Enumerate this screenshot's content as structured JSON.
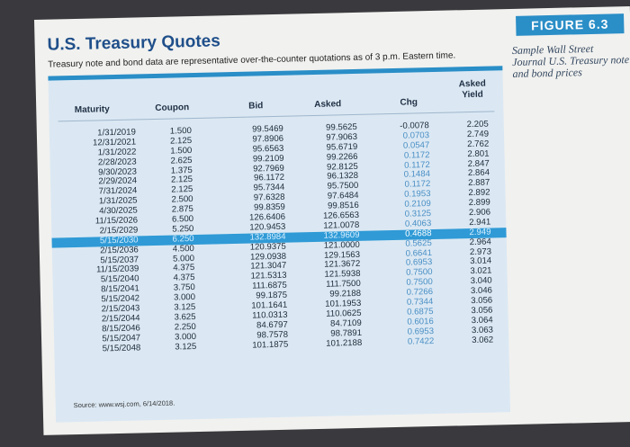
{
  "title": "U.S. Treasury Quotes",
  "subtitle": "Treasury note and bond data are representative over-the-counter quotations as of 3 p.m. Eastern time.",
  "figure_badge": "FIGURE 6.3",
  "caption": "Sample Wall Street Journal U.S. Treasury note and bond prices",
  "table": {
    "headers": {
      "maturity": "Maturity",
      "coupon": "Coupon",
      "bid": "Bid",
      "asked": "Asked",
      "chg": "Chg",
      "asked_yield_1": "Asked",
      "asked_yield_2": "Yield"
    },
    "rows": [
      {
        "maturity": "1/31/2019",
        "coupon": "1.500",
        "bid": "99.5469",
        "asked": "99.5625",
        "chg": "-0.0078",
        "yield": "2.205"
      },
      {
        "maturity": "12/31/2021",
        "coupon": "2.125",
        "bid": "97.8906",
        "asked": "97.9063",
        "chg": "0.0703",
        "yield": "2.749"
      },
      {
        "maturity": "1/31/2022",
        "coupon": "1.500",
        "bid": "95.6563",
        "asked": "95.6719",
        "chg": "0.0547",
        "yield": "2.762"
      },
      {
        "maturity": "2/28/2023",
        "coupon": "2.625",
        "bid": "99.2109",
        "asked": "99.2266",
        "chg": "0.1172",
        "yield": "2.801"
      },
      {
        "maturity": "9/30/2023",
        "coupon": "1.375",
        "bid": "92.7969",
        "asked": "92.8125",
        "chg": "0.1172",
        "yield": "2.847"
      },
      {
        "maturity": "2/29/2024",
        "coupon": "2.125",
        "bid": "96.1172",
        "asked": "96.1328",
        "chg": "0.1484",
        "yield": "2.864"
      },
      {
        "maturity": "7/31/2024",
        "coupon": "2.125",
        "bid": "95.7344",
        "asked": "95.7500",
        "chg": "0.1172",
        "yield": "2.887"
      },
      {
        "maturity": "1/31/2025",
        "coupon": "2.500",
        "bid": "97.6328",
        "asked": "97.6484",
        "chg": "0.1953",
        "yield": "2.892"
      },
      {
        "maturity": "4/30/2025",
        "coupon": "2.875",
        "bid": "99.8359",
        "asked": "99.8516",
        "chg": "0.2109",
        "yield": "2.899"
      },
      {
        "maturity": "11/15/2026",
        "coupon": "6.500",
        "bid": "126.6406",
        "asked": "126.6563",
        "chg": "0.3125",
        "yield": "2.906"
      },
      {
        "maturity": "2/15/2029",
        "coupon": "5.250",
        "bid": "120.9453",
        "asked": "121.0078",
        "chg": "0.4063",
        "yield": "2.941"
      },
      {
        "maturity": "5/15/2030",
        "coupon": "6.250",
        "bid": "132.8984",
        "asked": "132.9609",
        "chg": "0.4688",
        "yield": "2.949",
        "highlight": true
      },
      {
        "maturity": "2/15/2036",
        "coupon": "4.500",
        "bid": "120.9375",
        "asked": "121.0000",
        "chg": "0.5625",
        "yield": "2.964"
      },
      {
        "maturity": "5/15/2037",
        "coupon": "5.000",
        "bid": "129.0938",
        "asked": "129.1563",
        "chg": "0.6641",
        "yield": "2.973"
      },
      {
        "maturity": "11/15/2039",
        "coupon": "4.375",
        "bid": "121.3047",
        "asked": "121.3672",
        "chg": "0.6953",
        "yield": "3.014"
      },
      {
        "maturity": "5/15/2040",
        "coupon": "4.375",
        "bid": "121.5313",
        "asked": "121.5938",
        "chg": "0.7500",
        "yield": "3.021"
      },
      {
        "maturity": "8/15/2041",
        "coupon": "3.750",
        "bid": "111.6875",
        "asked": "111.7500",
        "chg": "0.7500",
        "yield": "3.040"
      },
      {
        "maturity": "5/15/2042",
        "coupon": "3.000",
        "bid": "99.1875",
        "asked": "99.2188",
        "chg": "0.7266",
        "yield": "3.046"
      },
      {
        "maturity": "2/15/2043",
        "coupon": "3.125",
        "bid": "101.1641",
        "asked": "101.1953",
        "chg": "0.7344",
        "yield": "3.056"
      },
      {
        "maturity": "2/15/2044",
        "coupon": "3.625",
        "bid": "110.0313",
        "asked": "110.0625",
        "chg": "0.6875",
        "yield": "3.056"
      },
      {
        "maturity": "8/15/2046",
        "coupon": "2.250",
        "bid": "84.6797",
        "asked": "84.7109",
        "chg": "0.6016",
        "yield": "3.064"
      },
      {
        "maturity": "5/15/2047",
        "coupon": "3.000",
        "bid": "98.7578",
        "asked": "98.7891",
        "chg": "0.6953",
        "yield": "3.063"
      },
      {
        "maturity": "5/15/2048",
        "coupon": "3.125",
        "bid": "101.1875",
        "asked": "101.2188",
        "chg": "0.7422",
        "yield": "3.062"
      }
    ]
  },
  "source": "Source: www.wsj.com, 6/14/2018.",
  "colors": {
    "accent": "#2a8ec7",
    "title": "#1f4f8a",
    "table_bg": "#dbe8f3",
    "highlight_row": "#2f9ad6"
  }
}
